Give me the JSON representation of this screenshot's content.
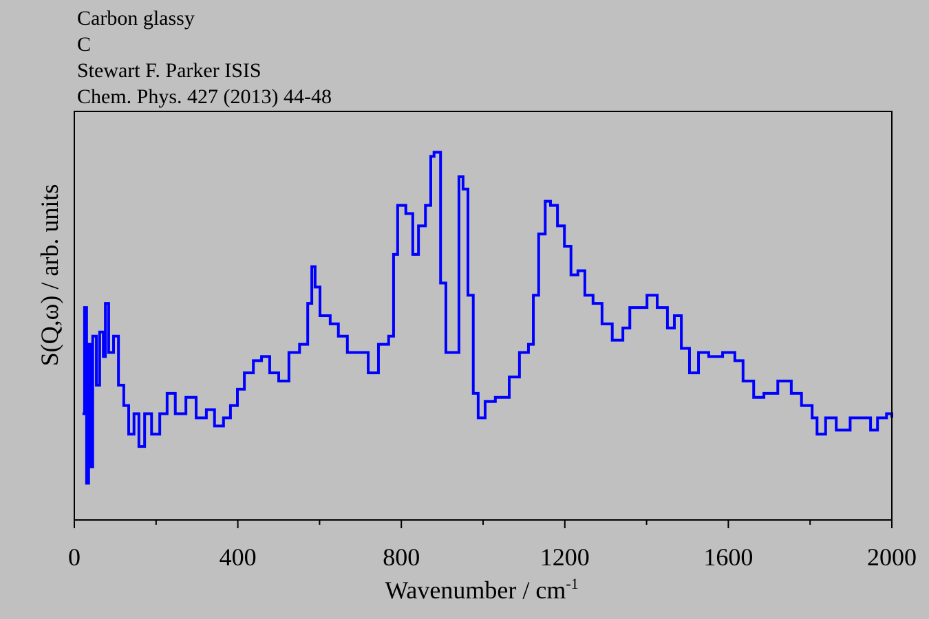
{
  "chart_data": {
    "type": "line",
    "title_lines": [
      "Carbon glassy",
      "C",
      "Stewart F. Parker ISIS",
      "Chem. Phys. 427 (2013) 44-48"
    ],
    "xlabel": "Wavenumber / cm",
    "xlabel_superscript": "-1",
    "ylabel": "S(Q,ω) / arb. units",
    "xlim": [
      0,
      2000
    ],
    "xticks": [
      0,
      400,
      800,
      1200,
      1600,
      2000
    ],
    "xminorticks": [
      200,
      600,
      1000,
      1400,
      1800
    ],
    "ylim": [
      0,
      100
    ],
    "step": true,
    "x": [
      20,
      25,
      30,
      35,
      40,
      45,
      54,
      62,
      71,
      76,
      84,
      96,
      108,
      121,
      133,
      146,
      158,
      172,
      189,
      209,
      227,
      247,
      273,
      298,
      323,
      343,
      365,
      382,
      399,
      416,
      438,
      458,
      478,
      500,
      525,
      551,
      571,
      581,
      589,
      601,
      626,
      646,
      668,
      694,
      719,
      744,
      769,
      781,
      791,
      811,
      828,
      842,
      859,
      872,
      880,
      896,
      909,
      929,
      941,
      951,
      963,
      976,
      988,
      1005,
      1030,
      1064,
      1089,
      1111,
      1123,
      1136,
      1152,
      1165,
      1182,
      1199,
      1215,
      1232,
      1249,
      1269,
      1291,
      1316,
      1342,
      1359,
      1384,
      1401,
      1426,
      1451,
      1468,
      1485,
      1505,
      1527,
      1552,
      1586,
      1616,
      1636,
      1662,
      1687,
      1721,
      1754,
      1779,
      1805,
      1817,
      1838,
      1864,
      1898,
      1931,
      1948,
      1965,
      1987,
      2000
    ],
    "series": [
      {
        "color": "#0000ff",
        "values": [
          26,
          52,
          9,
          43,
          13,
          45,
          33,
          46,
          40,
          53,
          41,
          45,
          33,
          28,
          21,
          26,
          18,
          26,
          21,
          26,
          31,
          26,
          30,
          25,
          27,
          23,
          25,
          28,
          32,
          36,
          39,
          40,
          36,
          34,
          41,
          43,
          53,
          62,
          57,
          50,
          48,
          45,
          41,
          41,
          36,
          43,
          45,
          65,
          77,
          75,
          65,
          72,
          77,
          89,
          90,
          58,
          41,
          41,
          84,
          81,
          55,
          31,
          25,
          29,
          30,
          35,
          41,
          43,
          55,
          70,
          78,
          77,
          72,
          67,
          60,
          61,
          55,
          53,
          48,
          44,
          47,
          52,
          52,
          55,
          52,
          47,
          50,
          42,
          36,
          41,
          40,
          41,
          39,
          34,
          30,
          31,
          34,
          31,
          28,
          25,
          21,
          25,
          22,
          25,
          25,
          22,
          25,
          26,
          25
        ]
      }
    ]
  }
}
